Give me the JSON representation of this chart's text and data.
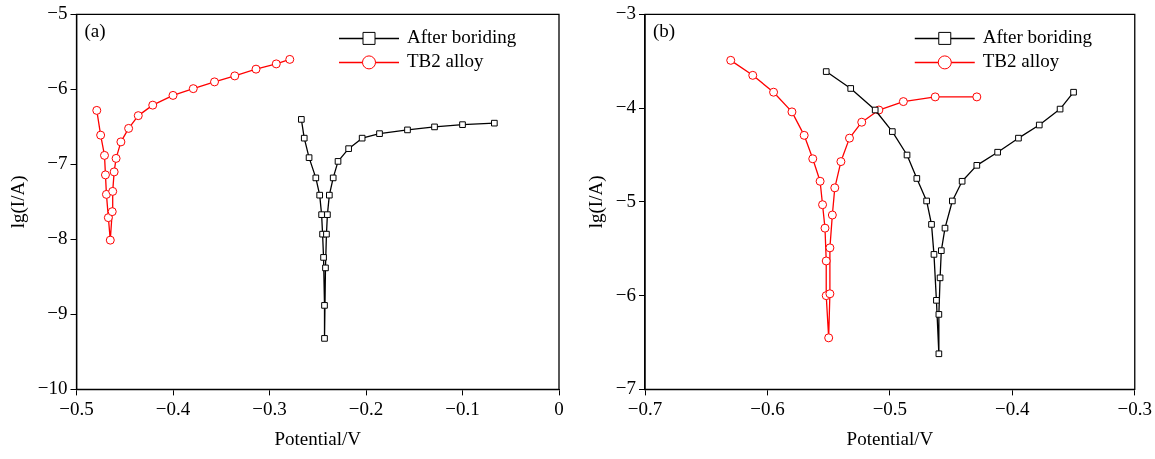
{
  "chart_data": [
    {
      "type": "line",
      "xlabel": "Potential/V",
      "ylabel": "lg(I/A)",
      "xlim": [
        -0.5,
        0
      ],
      "xticks": [
        -0.5,
        -0.4,
        -0.3,
        -0.2,
        -0.1,
        0
      ],
      "ylim": [
        -10,
        -5
      ],
      "yticks": [
        -10,
        -9,
        -8,
        -7,
        -6,
        -5
      ],
      "grid": false,
      "legend": "top right",
      "annotations": [
        "(a)"
      ],
      "series": [
        {
          "name": "After boriding",
          "color": "#000000",
          "marker": "square",
          "x": [
            -0.267,
            -0.264,
            -0.259,
            -0.252,
            -0.248,
            -0.246,
            -0.245,
            -0.244,
            -0.243,
            -0.243,
            -0.242,
            -0.241,
            -0.24,
            -0.238,
            -0.234,
            -0.229,
            -0.218,
            -0.204,
            -0.186,
            -0.157,
            -0.129,
            -0.1,
            -0.067
          ],
          "values": [
            -6.4,
            -6.65,
            -6.91,
            -7.18,
            -7.41,
            -7.67,
            -7.93,
            -8.24,
            -8.88,
            -9.32,
            -8.38,
            -7.93,
            -7.67,
            -7.41,
            -7.18,
            -6.96,
            -6.79,
            -6.65,
            -6.59,
            -6.54,
            -6.5,
            -6.47,
            -6.45
          ]
        },
        {
          "name": "TB2 alloy",
          "color": "#ff0000",
          "marker": "circle",
          "x": [
            -0.479,
            -0.475,
            -0.471,
            -0.47,
            -0.469,
            -0.467,
            -0.465,
            -0.463,
            -0.4625,
            -0.461,
            -0.459,
            -0.454,
            -0.446,
            -0.436,
            -0.421,
            -0.4,
            -0.379,
            -0.357,
            -0.336,
            -0.314,
            -0.293,
            -0.279
          ],
          "values": [
            -6.28,
            -6.61,
            -6.88,
            -7.14,
            -7.4,
            -7.71,
            -8.01,
            -7.63,
            -7.36,
            -7.1,
            -6.92,
            -6.7,
            -6.52,
            -6.35,
            -6.21,
            -6.08,
            -5.99,
            -5.9,
            -5.82,
            -5.73,
            -5.66,
            -5.6
          ]
        }
      ]
    },
    {
      "type": "line",
      "xlabel": "Potential/V",
      "ylabel": "lg(I/A)",
      "xlim": [
        -0.7,
        -0.3
      ],
      "xticks": [
        -0.7,
        -0.6,
        -0.5,
        -0.4,
        -0.3
      ],
      "ylim": [
        -7,
        -3
      ],
      "yticks": [
        -7,
        -6,
        -5,
        -4,
        -3
      ],
      "grid": false,
      "legend": "top right",
      "annotations": [
        "(b)"
      ],
      "series": [
        {
          "name": "After boriding",
          "color": "#000000",
          "marker": "square",
          "x": [
            -0.552,
            -0.532,
            -0.512,
            -0.498,
            -0.486,
            -0.478,
            -0.47,
            -0.466,
            -0.464,
            -0.462,
            -0.46,
            -0.46,
            -0.459,
            -0.458,
            -0.455,
            -0.449,
            -0.441,
            -0.429,
            -0.412,
            -0.395,
            -0.378,
            -0.361,
            -0.35
          ],
          "values": [
            -3.61,
            -3.79,
            -4.02,
            -4.25,
            -4.5,
            -4.75,
            -4.99,
            -5.24,
            -5.56,
            -6.05,
            -6.62,
            -6.2,
            -5.81,
            -5.52,
            -5.28,
            -4.99,
            -4.78,
            -4.61,
            -4.47,
            -4.32,
            -4.18,
            -4.01,
            -3.83
          ]
        },
        {
          "name": "TB2 alloy",
          "color": "#ff0000",
          "marker": "circle",
          "x": [
            -0.63,
            -0.612,
            -0.595,
            -0.58,
            -0.57,
            -0.563,
            -0.557,
            -0.555,
            -0.553,
            -0.552,
            -0.552,
            -0.55,
            -0.549,
            -0.549,
            -0.547,
            -0.545,
            -0.54,
            -0.533,
            -0.523,
            -0.509,
            -0.489,
            -0.463,
            -0.429
          ],
          "values": [
            -3.49,
            -3.65,
            -3.83,
            -4.04,
            -4.29,
            -4.54,
            -4.78,
            -5.03,
            -5.28,
            -5.63,
            -6.0,
            -6.45,
            -5.98,
            -5.49,
            -5.14,
            -4.85,
            -4.57,
            -4.32,
            -4.15,
            -4.02,
            -3.93,
            -3.88,
            -3.88
          ]
        }
      ]
    }
  ]
}
